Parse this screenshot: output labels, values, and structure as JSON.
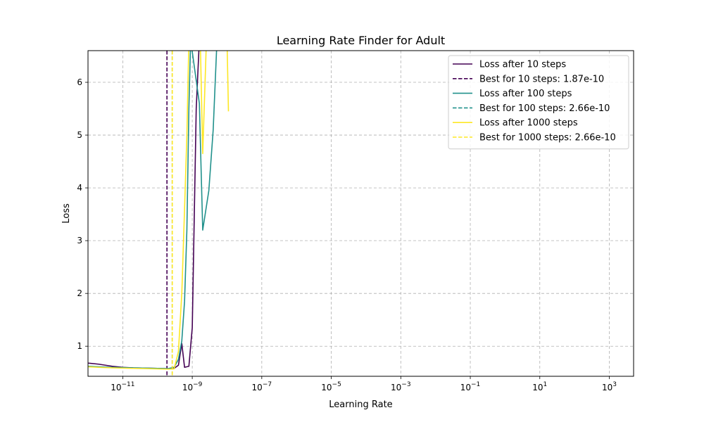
{
  "chart_data": {
    "type": "line",
    "title": "Learning Rate Finder for Adult",
    "xlabel": "Learning Rate",
    "ylabel": "Loss",
    "xscale": "log",
    "xlim": [
      1e-12,
      5000
    ],
    "ylim": [
      0.43,
      6.6
    ],
    "grid": true,
    "legend_position": "top-right",
    "x_ticks": [
      {
        "value": 1e-11,
        "base": "10",
        "exp": "−11"
      },
      {
        "value": 1e-09,
        "base": "10",
        "exp": "−9"
      },
      {
        "value": 1e-07,
        "base": "10",
        "exp": "−7"
      },
      {
        "value": 1e-05,
        "base": "10",
        "exp": "−5"
      },
      {
        "value": 0.001,
        "base": "10",
        "exp": "−3"
      },
      {
        "value": 0.1,
        "base": "10",
        "exp": "−1"
      },
      {
        "value": 10,
        "base": "10",
        "exp": "1"
      },
      {
        "value": 1000,
        "base": "10",
        "exp": "3"
      }
    ],
    "y_ticks": [
      {
        "value": 1,
        "label": "1"
      },
      {
        "value": 2,
        "label": "2"
      },
      {
        "value": 3,
        "label": "3"
      },
      {
        "value": 4,
        "label": "4"
      },
      {
        "value": 5,
        "label": "5"
      },
      {
        "value": 6,
        "label": "6"
      }
    ],
    "series": [
      {
        "name": "Loss after 10 steps",
        "color": "#440154",
        "style": "solid",
        "points": [
          [
            1e-12,
            0.68
          ],
          [
            2e-12,
            0.66
          ],
          [
            5e-12,
            0.62
          ],
          [
            1e-11,
            0.6
          ],
          [
            2e-11,
            0.59
          ],
          [
            5e-11,
            0.585
          ],
          [
            1e-10,
            0.58
          ],
          [
            2e-10,
            0.575
          ],
          [
            3e-10,
            0.58
          ],
          [
            4e-10,
            0.64
          ],
          [
            5e-10,
            1.05
          ],
          [
            6e-10,
            0.6
          ],
          [
            8e-10,
            0.62
          ],
          [
            1e-09,
            1.35
          ],
          [
            1.3e-09,
            5.5
          ],
          [
            1.6e-09,
            6.8
          ]
        ]
      },
      {
        "name": "Best for 10 steps: 1.87e-10",
        "color": "#440154",
        "style": "dashed",
        "vline": 1.87e-10
      },
      {
        "name": "Loss after 100 steps",
        "color": "#21918c",
        "style": "solid",
        "points": [
          [
            1e-12,
            0.62
          ],
          [
            2e-12,
            0.61
          ],
          [
            5e-12,
            0.6
          ],
          [
            1e-11,
            0.595
          ],
          [
            2e-11,
            0.59
          ],
          [
            5e-11,
            0.585
          ],
          [
            1e-10,
            0.58
          ],
          [
            2e-10,
            0.575
          ],
          [
            3e-10,
            0.6
          ],
          [
            4e-10,
            0.75
          ],
          [
            5e-10,
            1.1
          ],
          [
            6e-10,
            1.85
          ],
          [
            7e-10,
            3.2
          ],
          [
            8e-10,
            5.5
          ],
          [
            9e-10,
            6.8
          ],
          [
            1.6e-09,
            5.6
          ],
          [
            2e-09,
            3.2
          ],
          [
            3e-09,
            3.95
          ],
          [
            4e-09,
            5.1
          ],
          [
            5e-09,
            6.6
          ]
        ]
      },
      {
        "name": "Best for 100 steps: 2.66e-10",
        "color": "#21918c",
        "style": "dashed",
        "vline": 2.66e-10
      },
      {
        "name": "Loss after 1000 steps",
        "color": "#fde725",
        "style": "solid",
        "points": [
          [
            1e-12,
            0.61
          ],
          [
            2e-12,
            0.6
          ],
          [
            5e-12,
            0.59
          ],
          [
            1e-11,
            0.585
          ],
          [
            2e-11,
            0.58
          ],
          [
            5e-11,
            0.575
          ],
          [
            1e-10,
            0.57
          ],
          [
            2e-10,
            0.565
          ],
          [
            3e-10,
            0.57
          ],
          [
            4e-10,
            0.9
          ],
          [
            5e-10,
            2.0
          ],
          [
            6e-10,
            3.6
          ],
          [
            7e-10,
            5.0
          ],
          [
            8e-10,
            6.8
          ],
          [
            1.7e-09,
            6.8
          ],
          [
            2e-09,
            4.65
          ],
          [
            2.5e-09,
            6.6
          ],
          [
            1e-08,
            6.8
          ],
          [
            1.1e-08,
            5.45
          ]
        ]
      },
      {
        "name": "Best for 1000 steps: 2.66e-10",
        "color": "#fde725",
        "style": "dashed",
        "vline": 2.66e-10
      }
    ]
  }
}
